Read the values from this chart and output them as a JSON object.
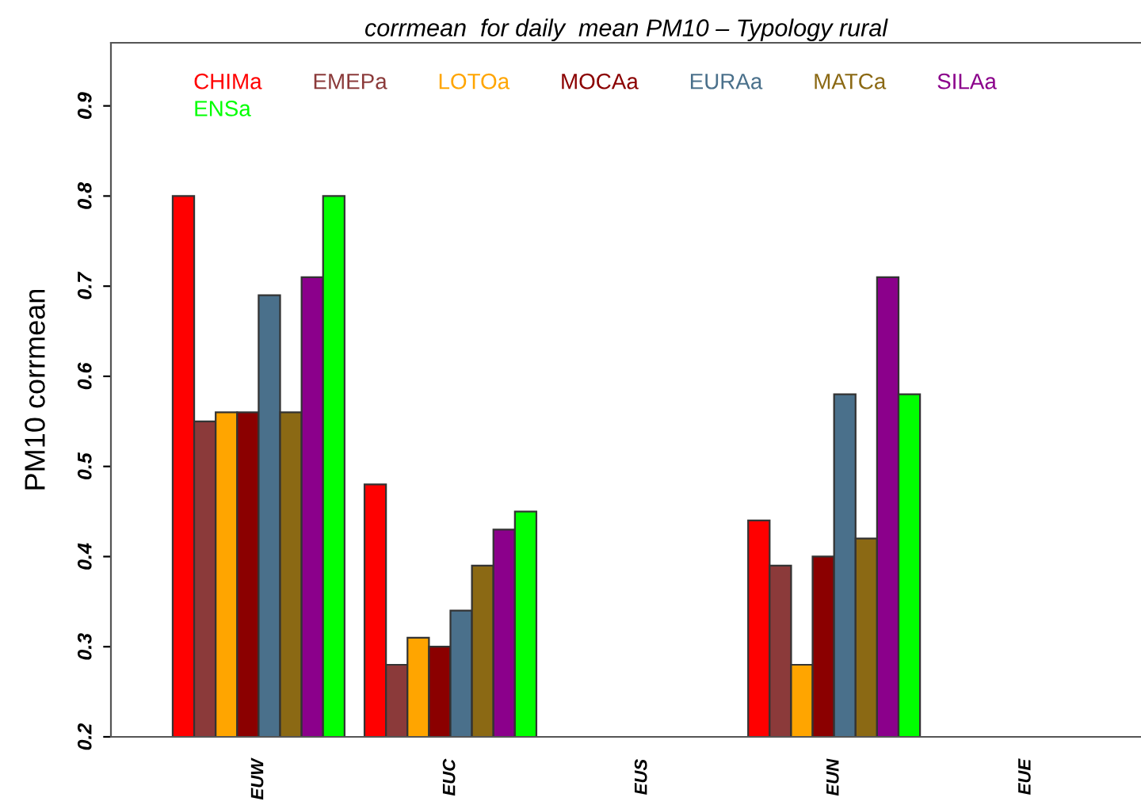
{
  "chart_data": {
    "type": "bar",
    "title": "corrmean  for daily  mean PM10 – Typology rural",
    "ylabel": "PM10 corrmean",
    "categories": [
      "EUW",
      "EUC",
      "EUS",
      "EUN",
      "EUE"
    ],
    "series": [
      {
        "name": "CHIMa",
        "color": "#ff0000",
        "values": [
          0.8,
          0.48,
          null,
          0.44,
          null
        ]
      },
      {
        "name": "EMEPa",
        "color": "#8b3a3a",
        "values": [
          0.55,
          0.28,
          null,
          0.39,
          null
        ]
      },
      {
        "name": "LOTOa",
        "color": "#ffa500",
        "values": [
          0.56,
          0.31,
          null,
          0.28,
          null
        ]
      },
      {
        "name": "MOCAa",
        "color": "#8b0000",
        "values": [
          0.56,
          0.3,
          null,
          0.4,
          null
        ]
      },
      {
        "name": "EURAa",
        "color": "#4a708b",
        "values": [
          0.69,
          0.34,
          null,
          0.58,
          null
        ]
      },
      {
        "name": "MATCa",
        "color": "#8b6914",
        "values": [
          0.56,
          0.39,
          null,
          0.42,
          null
        ]
      },
      {
        "name": "SILAa",
        "color": "#8b008b",
        "values": [
          0.71,
          0.43,
          null,
          0.71,
          null
        ]
      },
      {
        "name": "ENSa",
        "color": "#00ff00",
        "values": [
          0.8,
          0.45,
          null,
          0.58,
          null
        ]
      }
    ],
    "ylim": [
      0.2,
      0.97
    ],
    "yticks": [
      0.2,
      0.3,
      0.4,
      0.5,
      0.6,
      0.7,
      0.8,
      0.9
    ],
    "grid": false,
    "legend": "top"
  }
}
